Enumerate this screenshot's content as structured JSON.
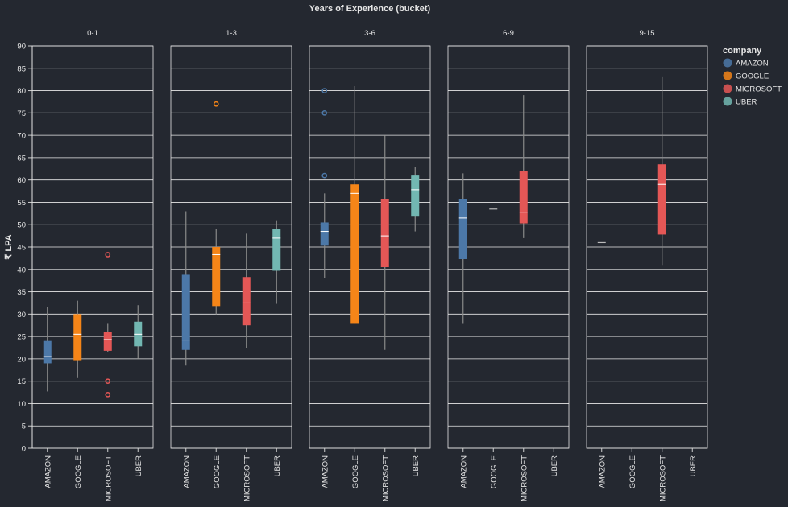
{
  "chart_data": {
    "type": "boxplot",
    "title": "Years of Experience (bucket)",
    "ylabel": "₹ LPA",
    "ylim": [
      0,
      90
    ],
    "yticks": [
      0,
      5,
      10,
      15,
      20,
      25,
      30,
      35,
      40,
      45,
      50,
      55,
      60,
      65,
      70,
      75,
      80,
      85,
      90
    ],
    "grid": true,
    "categories": [
      "AMAZON",
      "GOOGLE",
      "MICROSOFT",
      "UBER"
    ],
    "legend": {
      "title": "company",
      "placement": "top-right",
      "items": [
        {
          "name": "AMAZON",
          "color": "#4c78a8"
        },
        {
          "name": "GOOGLE",
          "color": "#f58518"
        },
        {
          "name": "MICROSOFT",
          "color": "#e45756"
        },
        {
          "name": "UBER",
          "color": "#72b7b2"
        }
      ]
    },
    "facets": [
      {
        "name": "0-1",
        "boxes": [
          {
            "company": "AMAZON",
            "whisker_low": 12.7,
            "q1": 19.0,
            "median": 20.5,
            "q3": 24.0,
            "whisker_high": 31.5,
            "outliers": []
          },
          {
            "company": "GOOGLE",
            "whisker_low": 15.7,
            "q1": 19.7,
            "median": 25.5,
            "q3": 30.0,
            "whisker_high": 33.0,
            "outliers": []
          },
          {
            "company": "MICROSOFT",
            "whisker_low": 21.5,
            "q1": 21.8,
            "median": 24.3,
            "q3": 26.0,
            "whisker_high": 28.0,
            "outliers": [
              43.3,
              15.0,
              12.0
            ]
          },
          {
            "company": "UBER",
            "whisker_low": 20.0,
            "q1": 22.8,
            "median": 25.5,
            "q3": 28.3,
            "whisker_high": 32.0,
            "outliers": []
          }
        ]
      },
      {
        "name": "1-3",
        "boxes": [
          {
            "company": "AMAZON",
            "whisker_low": 18.5,
            "q1": 22.0,
            "median": 24.2,
            "q3": 38.8,
            "whisker_high": 53.0,
            "outliers": []
          },
          {
            "company": "GOOGLE",
            "whisker_low": 30.0,
            "q1": 31.8,
            "median": 43.3,
            "q3": 45.0,
            "whisker_high": 49.0,
            "outliers": [
              77.0
            ]
          },
          {
            "company": "MICROSOFT",
            "whisker_low": 22.5,
            "q1": 27.5,
            "median": 32.5,
            "q3": 38.3,
            "whisker_high": 48.0,
            "outliers": []
          },
          {
            "company": "UBER",
            "whisker_low": 32.3,
            "q1": 39.7,
            "median": 47.0,
            "q3": 49.0,
            "whisker_high": 51.0,
            "outliers": []
          }
        ]
      },
      {
        "name": "3-6",
        "boxes": [
          {
            "company": "AMAZON",
            "whisker_low": 38.0,
            "q1": 45.3,
            "median": 48.5,
            "q3": 50.5,
            "whisker_high": 57.0,
            "outliers": [
              80.0,
              75.0,
              61.0
            ]
          },
          {
            "company": "GOOGLE",
            "whisker_low": 28.0,
            "q1": 28.0,
            "median": 57.0,
            "q3": 59.0,
            "whisker_high": 81.0,
            "outliers": []
          },
          {
            "company": "MICROSOFT",
            "whisker_low": 22.0,
            "q1": 40.5,
            "median": 47.5,
            "q3": 55.8,
            "whisker_high": 70.0,
            "outliers": []
          },
          {
            "company": "UBER",
            "whisker_low": 48.5,
            "q1": 51.8,
            "median": 57.8,
            "q3": 61.0,
            "whisker_high": 63.0,
            "outliers": []
          }
        ]
      },
      {
        "name": "6-9",
        "boxes": [
          {
            "company": "AMAZON",
            "whisker_low": 28.0,
            "q1": 42.3,
            "median": 51.5,
            "q3": 55.8,
            "whisker_high": 61.5,
            "outliers": []
          },
          {
            "company": "GOOGLE",
            "whisker_low": 53.5,
            "q1": 53.5,
            "median": 53.5,
            "q3": 53.5,
            "whisker_high": 53.5,
            "outliers": []
          },
          {
            "company": "MICROSOFT",
            "whisker_low": 47.0,
            "q1": 50.3,
            "median": 52.8,
            "q3": 62.0,
            "whisker_high": 79.0,
            "outliers": []
          }
        ]
      },
      {
        "name": "9-15",
        "boxes": [
          {
            "company": "AMAZON",
            "whisker_low": 46.0,
            "q1": 46.0,
            "median": 46.0,
            "q3": 46.0,
            "whisker_high": 46.0,
            "outliers": []
          },
          {
            "company": "MICROSOFT",
            "whisker_low": 41.0,
            "q1": 47.8,
            "median": 59.0,
            "q3": 63.5,
            "whisker_high": 83.0,
            "outliers": []
          }
        ]
      }
    ]
  }
}
